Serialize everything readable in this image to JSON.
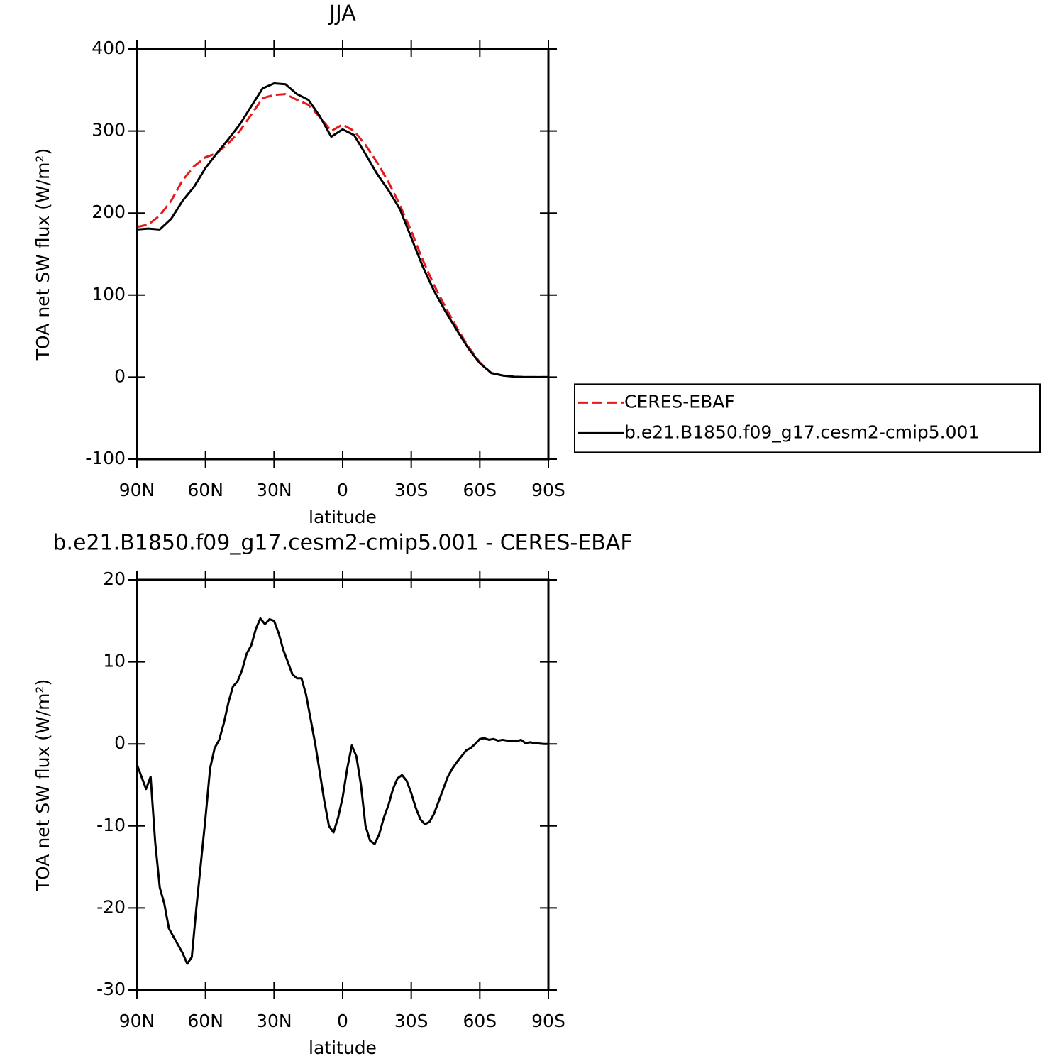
{
  "chart_data": [
    {
      "type": "line",
      "title": "JJA",
      "xlabel": "latitude",
      "ylabel": "TOA net SW flux (W/m²)",
      "xlim": [
        90,
        -90
      ],
      "ylim": [
        -100,
        400
      ],
      "xticks": [
        {
          "value": 90,
          "label": "90N"
        },
        {
          "value": 60,
          "label": "60N"
        },
        {
          "value": 30,
          "label": "30N"
        },
        0,
        {
          "value": -30,
          "label": "30S"
        },
        {
          "value": -60,
          "label": "60S"
        },
        {
          "value": -90,
          "label": "90S"
        }
      ],
      "yticks": [
        -100,
        0,
        100,
        200,
        300,
        400
      ],
      "legend": "outside-right",
      "x": [
        90,
        85,
        80,
        75,
        70,
        65,
        60,
        55,
        50,
        45,
        40,
        35,
        30,
        25,
        20,
        15,
        10,
        5,
        0,
        -5,
        -10,
        -15,
        -20,
        -25,
        -30,
        -35,
        -40,
        -45,
        -50,
        -55,
        -60,
        -65,
        -70,
        -75,
        -80,
        -85,
        -90
      ],
      "series": [
        {
          "name": "CERES-EBAF",
          "color": "#e41a1c",
          "style": "dashed",
          "values": [
            183,
            186,
            197,
            215,
            240,
            257,
            268,
            273,
            285,
            300,
            320,
            340,
            344,
            345,
            338,
            332,
            317,
            300,
            308,
            300,
            283,
            262,
            238,
            210,
            178,
            143,
            112,
            85,
            60,
            37,
            18,
            5,
            2,
            0.5,
            0,
            0,
            0
          ]
        },
        {
          "name": "b.e21.B1850.f09_g17.cesm2-cmip5.001",
          "color": "#000000",
          "style": "solid",
          "values": [
            180,
            181,
            180,
            193,
            215,
            232,
            255,
            273,
            290,
            308,
            330,
            352,
            358,
            357,
            345,
            338,
            318,
            293,
            302,
            295,
            272,
            248,
            228,
            205,
            170,
            135,
            105,
            80,
            57,
            35,
            17,
            5,
            2,
            0.5,
            0,
            0,
            0
          ]
        }
      ]
    },
    {
      "type": "line",
      "title": "b.e21.B1850.f09_g17.cesm2-cmip5.001 - CERES-EBAF",
      "xlabel": "latitude",
      "ylabel": "TOA net SW flux (W/m²)",
      "xlim": [
        90,
        -90
      ],
      "ylim": [
        -30,
        20
      ],
      "xticks": [
        {
          "value": 90,
          "label": "90N"
        },
        {
          "value": 60,
          "label": "60N"
        },
        {
          "value": 30,
          "label": "30N"
        },
        0,
        {
          "value": -30,
          "label": "30S"
        },
        {
          "value": -60,
          "label": "60S"
        },
        {
          "value": -90,
          "label": "90S"
        }
      ],
      "yticks": [
        -30,
        -20,
        -10,
        0,
        10,
        20
      ],
      "x": [
        90,
        88,
        86,
        84,
        82,
        80,
        78,
        76,
        74,
        72,
        70,
        68,
        66,
        64,
        62,
        60,
        58,
        56,
        54,
        52,
        50,
        48,
        46,
        44,
        42,
        40,
        38,
        36,
        34,
        32,
        30,
        28,
        26,
        24,
        22,
        20,
        18,
        16,
        14,
        12,
        10,
        8,
        6,
        4,
        2,
        0,
        -2,
        -4,
        -6,
        -8,
        -10,
        -12,
        -14,
        -16,
        -18,
        -20,
        -22,
        -24,
        -26,
        -28,
        -30,
        -32,
        -34,
        -36,
        -38,
        -40,
        -42,
        -44,
        -46,
        -48,
        -50,
        -52,
        -54,
        -56,
        -58,
        -60,
        -62,
        -64,
        -66,
        -68,
        -70,
        -72,
        -74,
        -76,
        -78,
        -80,
        -82,
        -84,
        -86,
        -88,
        -90
      ],
      "series": [
        {
          "color": "#000000",
          "style": "solid",
          "values": [
            -2.5,
            -4,
            -5.5,
            -4,
            -12,
            -17.5,
            -19.5,
            -22.5,
            -23.5,
            -24.5,
            -25.5,
            -26.8,
            -26,
            -20,
            -14.5,
            -9,
            -3,
            -0.5,
            0.5,
            2.5,
            5,
            7,
            7.6,
            9,
            11,
            12,
            14,
            15.3,
            14.6,
            15.2,
            15,
            13.5,
            11.5,
            10,
            8.5,
            8,
            8,
            6,
            3,
            0,
            -3.5,
            -7,
            -10,
            -10.8,
            -9,
            -6.5,
            -3,
            -0.2,
            -1.5,
            -5,
            -10,
            -11.8,
            -12.2,
            -11,
            -9,
            -7.5,
            -5.5,
            -4.2,
            -3.8,
            -4.5,
            -6,
            -7.8,
            -9.2,
            -9.8,
            -9.5,
            -8.5,
            -7,
            -5.5,
            -4,
            -3,
            -2.2,
            -1.5,
            -0.8,
            -0.5,
            0,
            0.6,
            0.7,
            0.5,
            0.6,
            0.4,
            0.5,
            0.4,
            0.4,
            0.3,
            0.5,
            0.1,
            0.2,
            0.1,
            0.05,
            0,
            0
          ]
        }
      ]
    }
  ]
}
